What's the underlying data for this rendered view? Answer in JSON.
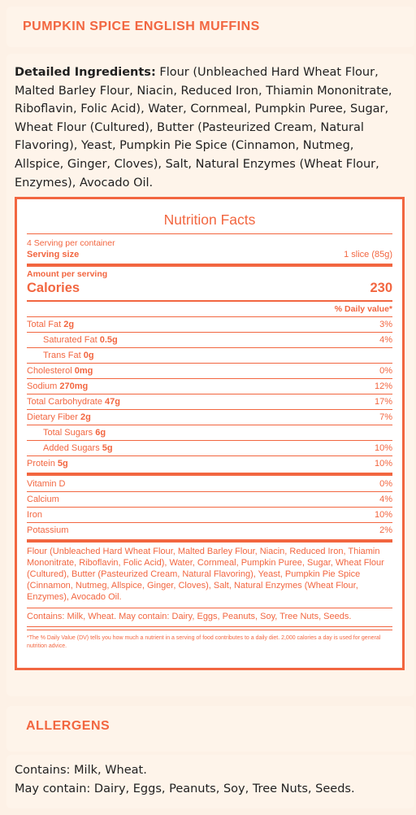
{
  "product_title": "PUMPKIN SPICE ENGLISH MUFFINS",
  "ingredients": {
    "label": "Detailed Ingredients:",
    "text": "Flour (Unbleached Hard Wheat Flour, Malted Barley Flour, Niacin, Reduced Iron, Thiamin Mononitrate, Riboflavin, Folic Acid), Water, Cornmeal, Pumpkin Puree, Sugar, Wheat Flour (Cultured), Butter (Pasteurized Cream, Natural Flavoring), Yeast, Pumpkin Pie Spice (Cinnamon, Nutmeg, Allspice, Ginger, Cloves), Salt, Natural Enzymes (Wheat Flour, Enzymes), Avocado Oil."
  },
  "nutrition": {
    "title": "Nutrition Facts",
    "servings_per_container": "4 Serving per container",
    "serving_size_label": "Serving size",
    "serving_size_value": "1 slice (85g)",
    "amount_per_serving": "Amount per serving",
    "calories_label": "Calories",
    "calories_value": "230",
    "dv_header": "% Daily value*",
    "nutrients": [
      {
        "label": "Total Fat",
        "amount": "2g",
        "dv": "3%"
      },
      {
        "label": "Saturated Fat",
        "amount": "0.5g",
        "dv": "4%"
      },
      {
        "label": "Trans Fat",
        "amount": "0g",
        "dv": ""
      },
      {
        "label": "Cholesterol",
        "amount": "0mg",
        "dv": "0%"
      },
      {
        "label": "Sodium",
        "amount": "270mg",
        "dv": "12%"
      },
      {
        "label": "Total Carbohydrate",
        "amount": "47g",
        "dv": "17%"
      },
      {
        "label": "Dietary Fiber",
        "amount": "2g",
        "dv": "7%"
      },
      {
        "label": "Total Sugars",
        "amount": "6g",
        "dv": ""
      },
      {
        "label": "Added Sugars",
        "amount": "5g",
        "dv": "10%"
      },
      {
        "label": "Protein",
        "amount": "5g",
        "dv": "10%"
      }
    ],
    "vitamins": [
      {
        "label": "Vitamin D",
        "dv": "0%"
      },
      {
        "label": "Calcium",
        "dv": "4%"
      },
      {
        "label": "Iron",
        "dv": "10%"
      },
      {
        "label": "Potassium",
        "dv": "2%"
      }
    ],
    "ingredients_text": "Flour (Unbleached Hard Wheat Flour, Malted Barley Flour, Niacin, Reduced Iron, Thiamin Mononitrate, Riboflavin, Folic Acid), Water, Cornmeal, Pumpkin Puree, Sugar, Wheat Flour (Cultured), Butter (Pasteurized Cream, Natural Flavoring), Yeast, Pumpkin Pie Spice (Cinnamon, Nutmeg, Allspice, Ginger, Cloves), Salt, Natural Enzymes (Wheat Flour, Enzymes), Avocado Oil.",
    "contains_text": "Contains: Milk, Wheat. May contain: Dairy, Eggs, Peanuts, Soy, Tree Nuts, Seeds.",
    "dv_footnote": "*The % Daily Value (DV) tells you how much a nutrient in a serving of food contributes to a daily diet. 2,000 calories a day is used for general nutrition advice."
  },
  "allergens": {
    "title": "ALLERGENS",
    "contains": "Contains: Milk, Wheat.",
    "may_contain": "May contain: Dairy, Eggs, Peanuts, Soy, Tree Nuts, Seeds."
  },
  "colors": {
    "accent": "#f26640",
    "background": "#fdf1e6",
    "card": "#fef4ea"
  }
}
